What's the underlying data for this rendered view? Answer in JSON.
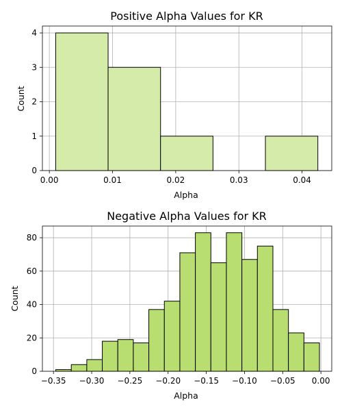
{
  "chart_data": [
    {
      "type": "bar",
      "title": "Positive Alpha Values for KR",
      "xlabel": "Alpha",
      "ylabel": "Count",
      "color": "#d4ebaa",
      "grid": true,
      "xlim": [
        -0.0011,
        0.0447
      ],
      "ylim": [
        0,
        4.2
      ],
      "xticks": [
        "0.00",
        "0.01",
        "0.02",
        "0.03",
        "0.04"
      ],
      "xtick_values": [
        0.0,
        0.01,
        0.02,
        0.03,
        0.04
      ],
      "yticks": [
        "0",
        "1",
        "2",
        "3",
        "4"
      ],
      "ytick_values": [
        0,
        1,
        2,
        3,
        4
      ],
      "bins": [
        {
          "x0": 0.001,
          "x1": 0.0093,
          "value": 4
        },
        {
          "x0": 0.0093,
          "x1": 0.0176,
          "value": 3
        },
        {
          "x0": 0.0176,
          "x1": 0.0259,
          "value": 1
        },
        {
          "x0": 0.0259,
          "x1": 0.0342,
          "value": 0
        },
        {
          "x0": 0.0342,
          "x1": 0.0425,
          "value": 1
        }
      ]
    },
    {
      "type": "bar",
      "title": "Negative Alpha Values for KR",
      "xlabel": "Alpha",
      "ylabel": "Count",
      "color": "#b8de72",
      "grid": true,
      "xlim": [
        -0.3645,
        0.0142
      ],
      "ylim": [
        0,
        87
      ],
      "xticks": [
        "−0.35",
        "−0.30",
        "−0.25",
        "−0.20",
        "−0.15",
        "−0.10",
        "−0.05",
        "0.00"
      ],
      "xtick_values": [
        -0.35,
        -0.3,
        -0.25,
        -0.2,
        -0.15,
        -0.1,
        -0.05,
        0.0
      ],
      "yticks": [
        "0",
        "20",
        "40",
        "60",
        "80"
      ],
      "ytick_values": [
        0,
        20,
        40,
        60,
        80
      ],
      "bins": [
        {
          "x0": -0.347,
          "x1": -0.3267,
          "value": 1
        },
        {
          "x0": -0.3267,
          "x1": -0.3064,
          "value": 4
        },
        {
          "x0": -0.3064,
          "x1": -0.2861,
          "value": 7
        },
        {
          "x0": -0.2861,
          "x1": -0.2658,
          "value": 18
        },
        {
          "x0": -0.2658,
          "x1": -0.2455,
          "value": 19
        },
        {
          "x0": -0.2455,
          "x1": -0.2252,
          "value": 17
        },
        {
          "x0": -0.2252,
          "x1": -0.2049,
          "value": 37
        },
        {
          "x0": -0.2049,
          "x1": -0.1846,
          "value": 42
        },
        {
          "x0": -0.1846,
          "x1": -0.1643,
          "value": 71
        },
        {
          "x0": -0.1643,
          "x1": -0.144,
          "value": 83
        },
        {
          "x0": -0.144,
          "x1": -0.1237,
          "value": 65
        },
        {
          "x0": -0.1237,
          "x1": -0.1034,
          "value": 83
        },
        {
          "x0": -0.1034,
          "x1": -0.0831,
          "value": 67
        },
        {
          "x0": -0.0831,
          "x1": -0.0628,
          "value": 75
        },
        {
          "x0": -0.0628,
          "x1": -0.0425,
          "value": 37
        },
        {
          "x0": -0.0425,
          "x1": -0.0222,
          "value": 23
        },
        {
          "x0": -0.0222,
          "x1": -0.0019,
          "value": 17
        }
      ]
    }
  ]
}
